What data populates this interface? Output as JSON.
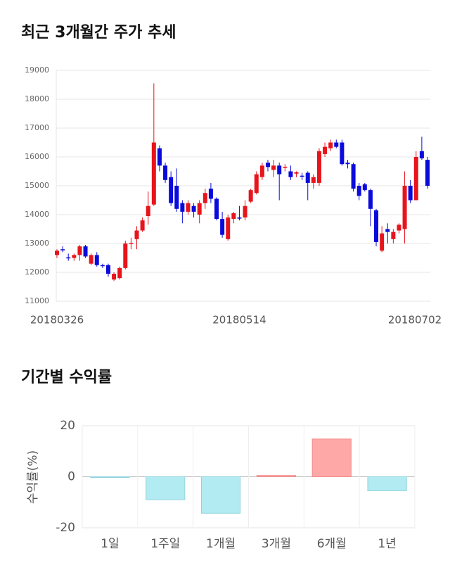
{
  "chart_data": [
    {
      "type": "candlestick",
      "title": "최근 3개월간 주가 추세",
      "categories": [
        "20180326",
        null,
        null,
        null,
        null,
        null,
        null,
        null,
        null,
        null,
        null,
        null,
        null,
        null,
        null,
        null,
        null,
        null,
        null,
        null,
        null,
        null,
        null,
        null,
        null,
        null,
        null,
        null,
        null,
        null,
        null,
        null,
        "20180514",
        null,
        null,
        null,
        null,
        null,
        null,
        null,
        null,
        null,
        null,
        null,
        null,
        null,
        null,
        null,
        null,
        null,
        null,
        null,
        null,
        null,
        null,
        null,
        null,
        null,
        null,
        null,
        null,
        null,
        null,
        "20180702",
        null,
        null
      ],
      "open": [
        12600,
        12800,
        12520,
        12500,
        12600,
        12900,
        12300,
        12600,
        12250,
        12250,
        11750,
        11800,
        12150,
        13000,
        13150,
        13450,
        13950,
        14350,
        16300,
        15700,
        15300,
        15000,
        14400,
        14100,
        14300,
        14000,
        14400,
        14900,
        14550,
        13850,
        13150,
        13850,
        13900,
        13900,
        14450,
        14750,
        15300,
        15800,
        15550,
        15700,
        15650,
        15500,
        15420,
        15350,
        15450,
        15100,
        15100,
        16100,
        16300,
        16500,
        16500,
        15800,
        15750,
        15000,
        15050,
        14850,
        14150,
        12750,
        13500,
        13150,
        13450,
        13500,
        15000,
        14500,
        16200,
        15900
      ],
      "high": [
        12800,
        12900,
        12650,
        12650,
        12950,
        12950,
        12650,
        12700,
        12300,
        12300,
        12000,
        12200,
        13100,
        13200,
        13600,
        13900,
        14800,
        18550,
        16400,
        15800,
        15500,
        15600,
        14500,
        14500,
        14400,
        14500,
        14900,
        15100,
        14600,
        14100,
        14000,
        14100,
        14300,
        14500,
        14900,
        15500,
        15800,
        15900,
        15900,
        15800,
        15750,
        15700,
        15500,
        15450,
        15500,
        15400,
        16300,
        16500,
        16600,
        16600,
        16600,
        15900,
        15800,
        15100,
        15100,
        14900,
        14200,
        13600,
        13700,
        13500,
        13700,
        15500,
        15200,
        16200,
        16700,
        16000
      ],
      "low": [
        12500,
        12700,
        12400,
        12400,
        12400,
        12500,
        12250,
        12200,
        12150,
        11850,
        11700,
        11750,
        12100,
        12800,
        12800,
        13400,
        13650,
        14300,
        15500,
        15100,
        14300,
        14100,
        13700,
        14000,
        13900,
        13700,
        14200,
        14400,
        13800,
        13200,
        13100,
        13700,
        13800,
        13800,
        14400,
        14700,
        15200,
        15500,
        15300,
        14500,
        15500,
        15200,
        15300,
        15200,
        14500,
        14900,
        15000,
        16000,
        16200,
        16300,
        15700,
        15600,
        14800,
        14500,
        14800,
        13600,
        12900,
        12700,
        13000,
        13000,
        13350,
        13000,
        14400,
        14500,
        15900,
        14900
      ],
      "close": [
        12750,
        12780,
        12500,
        12600,
        12900,
        12550,
        12600,
        12250,
        12230,
        11950,
        11950,
        12150,
        13000,
        13020,
        13450,
        13800,
        14300,
        16500,
        15700,
        15200,
        14400,
        14200,
        14100,
        14400,
        14100,
        14400,
        14750,
        14550,
        13850,
        13300,
        13900,
        14050,
        13880,
        14300,
        14850,
        15400,
        15700,
        15650,
        15700,
        15400,
        15660,
        15300,
        15470,
        15330,
        15100,
        15300,
        16200,
        16350,
        16500,
        16350,
        15750,
        15750,
        14900,
        14650,
        14850,
        14200,
        13050,
        13350,
        13400,
        13400,
        13650,
        15000,
        14500,
        16000,
        15950,
        15000
      ],
      "up_color": "#e8141c",
      "down_color": "#0a0adc",
      "ylim": [
        11000,
        19000
      ],
      "yticks": [
        11000,
        12000,
        13000,
        14000,
        15000,
        16000,
        17000,
        18000,
        19000
      ],
      "grid": true
    },
    {
      "type": "bar",
      "title": "기간별 수익률",
      "y_label": "수익률(%)",
      "categories": [
        "1일",
        "1주일",
        "1개월",
        "3개월",
        "6개월",
        "1년"
      ],
      "values": [
        -0.1,
        -9,
        -14.3,
        0.5,
        14.8,
        -5.5
      ],
      "positive_color": "#ffa8a8",
      "negative_color": "#b2ebf2",
      "ylim": [
        -20,
        20
      ],
      "yticks": [
        -20,
        0,
        20
      ],
      "grid": true
    }
  ]
}
